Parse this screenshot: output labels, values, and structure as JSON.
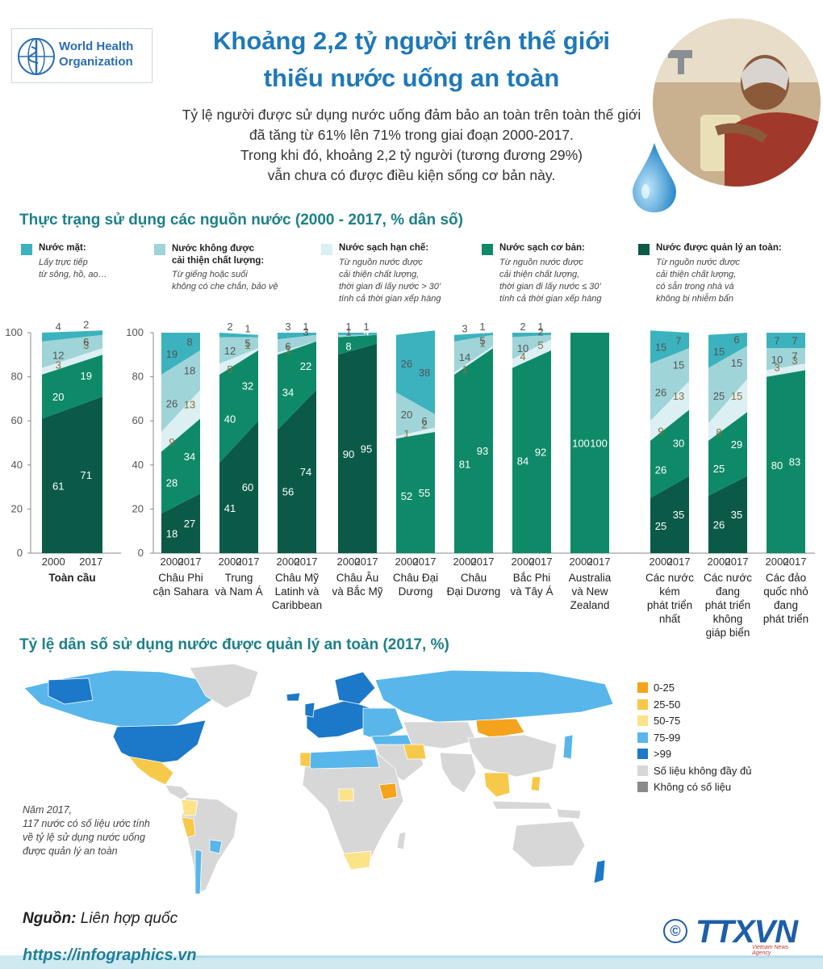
{
  "header": {
    "logo_text_1": "World Health",
    "logo_text_2": "Organization",
    "title_line1": "Khoảng 2,2 tỷ người trên thế giới",
    "title_line2": "thiếu nước uống an toàn",
    "subtitle_lines": [
      "Tỷ lệ người được sử dụng nước uống đảm bảo an toàn trên toàn thế giới",
      "đã tăng từ 61% lên 71% trong giai đoạn 2000-2017.",
      "Trong khi đó, khoảng 2,2 tỷ người (tương đương 29%)",
      "vẫn chưa có được điều kiện sống cơ bản này."
    ]
  },
  "section1": {
    "title": "Thực trạng sử dụng các nguồn nước (2000 - 2017, % dân số)"
  },
  "legend": [
    {
      "name": "Nước mặt:",
      "name2": "",
      "desc": [
        "Lấy trực tiếp",
        "từ sông, hồ, ao…"
      ],
      "color": "#3bb2bd"
    },
    {
      "name": "Nước không được",
      "name2": "cải thiện chất lượng:",
      "desc": [
        "Từ giếng hoặc suối",
        "không có che chắn, bảo vệ"
      ],
      "color": "#9fd4d8"
    },
    {
      "name": "Nước sạch hạn chế:",
      "name2": "",
      "desc": [
        "Từ nguồn nước được",
        "cải thiện chất lượng,",
        "thời gian đi lấy nước > 30’",
        "tính cả thời gian xếp hàng"
      ],
      "color": "#dceff2"
    },
    {
      "name": "Nước sạch cơ bản:",
      "name2": "",
      "desc": [
        "Từ nguồn nước được",
        "cải thiện chất lượng,",
        "thời gian đi lấy nước ≤ 30’",
        "tính cả thời gian xếp hàng"
      ],
      "color": "#0f8a68"
    },
    {
      "name": "Nước được quản lý an toàn:",
      "name2": "",
      "desc": [
        "Từ nguồn nước được",
        "cải thiện chất lượng,",
        "có sẵn trong nhà và",
        "không bị nhiễm bẩn"
      ],
      "color": "#0b5a48"
    }
  ],
  "chart_data": {
    "type": "bar",
    "stacked": true,
    "ylim": [
      0,
      100
    ],
    "yticks": [
      "0",
      "20",
      "40",
      "60",
      "80",
      "100"
    ],
    "series_order": [
      "Nước được quản lý an toàn",
      "Nước sạch cơ bản",
      "Nước sạch hạn chế",
      "Nước không được cải thiện chất lượng",
      "Nước mặt"
    ],
    "colors": [
      "#0b5a48",
      "#0f8a68",
      "#dceff2",
      "#9fd4d8",
      "#3bb2bd"
    ],
    "groups": [
      {
        "label": [
          "Toàn cầu"
        ],
        "bold": true,
        "years": [
          "2000",
          "2017"
        ],
        "values": [
          [
            61,
            20,
            3,
            12,
            4
          ],
          [
            71,
            19,
            3,
            6,
            2
          ]
        ]
      },
      {
        "label": [
          "Châu Phi",
          "cận Sahara"
        ],
        "years": [
          "2000",
          "2017"
        ],
        "values": [
          [
            18,
            28,
            9,
            26,
            19
          ],
          [
            27,
            34,
            13,
            18,
            8
          ]
        ]
      },
      {
        "label": [
          "Trung",
          "và Nam Á"
        ],
        "years": [
          "2000",
          "2017"
        ],
        "values": [
          [
            41,
            40,
            5,
            12,
            2
          ],
          [
            60,
            32,
            1,
            5,
            1
          ]
        ]
      },
      {
        "label": [
          "Châu Mỹ",
          "Latinh và",
          "Caribbean"
        ],
        "years": [
          "2000",
          "2017"
        ],
        "values": [
          [
            56,
            34,
            1,
            6,
            3
          ],
          [
            74,
            22,
            0,
            3,
            1
          ]
        ]
      },
      {
        "label": [
          "Châu Âu",
          "và Bắc Mỹ"
        ],
        "years": [
          "2000",
          "2017"
        ],
        "values": [
          [
            90,
            8,
            0,
            1,
            1
          ],
          [
            95,
            4,
            0,
            0,
            1
          ]
        ]
      },
      {
        "label": [
          "Châu Đại",
          "Dương"
        ],
        "years": [
          "2000",
          "2017"
        ],
        "values": [
          [
            0,
            52,
            1,
            20,
            26
          ],
          [
            0,
            55,
            2,
            6,
            38
          ]
        ]
      },
      {
        "label": [
          "Châu",
          "Đại Dương"
        ],
        "years": [
          "2000",
          "2017"
        ],
        "values": [
          [
            0,
            81,
            1,
            14,
            3
          ],
          [
            0,
            93,
            1,
            5,
            1
          ]
        ]
      },
      {
        "label": [
          "Bắc Phi",
          "và Tây Á"
        ],
        "years": [
          "2000",
          "2017"
        ],
        "values": [
          [
            0,
            84,
            4,
            10,
            2
          ],
          [
            0,
            92,
            5,
            2,
            1
          ]
        ]
      },
      {
        "label": [
          "Australia",
          "và New",
          "Zealand"
        ],
        "years": [
          "2000",
          "2017"
        ],
        "values": [
          [
            0,
            100,
            0,
            0,
            0
          ],
          [
            0,
            100,
            0,
            0,
            0
          ]
        ]
      },
      {
        "label": [
          "Các nước",
          "kém",
          "phát triển",
          "nhất"
        ],
        "years": [
          "2000",
          "2017"
        ],
        "values": [
          [
            25,
            26,
            9,
            26,
            15
          ],
          [
            35,
            30,
            13,
            15,
            7
          ]
        ]
      },
      {
        "label": [
          "Các nước",
          "đang",
          "phát triển",
          "không",
          "giáp biển"
        ],
        "years": [
          "2000",
          "2017"
        ],
        "values": [
          [
            26,
            25,
            8,
            25,
            15
          ],
          [
            35,
            29,
            15,
            15,
            6
          ]
        ]
      },
      {
        "label": [
          "Các đảo",
          "quốc nhỏ",
          "đang",
          "phát triển"
        ],
        "years": [
          "2000",
          "2017"
        ],
        "values": [
          [
            0,
            80,
            3,
            10,
            7
          ],
          [
            0,
            83,
            3,
            7,
            7
          ]
        ]
      }
    ]
  },
  "section2": {
    "title": "Tỷ lệ dân số sử dụng nước được quản lý an toàn (2017, %)",
    "legend": [
      {
        "label": "0-25",
        "color": "#f4a31c"
      },
      {
        "label": "25-50",
        "color": "#f7c94a"
      },
      {
        "label": "50-75",
        "color": "#fbe38a"
      },
      {
        "label": "75-99",
        "color": "#58b6ea"
      },
      {
        "label": ">99",
        "color": "#1c78c9"
      },
      {
        "label": "Số liệu không đầy đủ",
        "color": "#d7d7d7"
      },
      {
        "label": "Không có số liệu",
        "color": "#8a8a8a"
      }
    ],
    "note_lines": [
      "Năm 2017,",
      "117 nước có số liệu ước tính",
      "về tỷ lệ sử dụng nước uống",
      "được quản lý an toàn"
    ]
  },
  "footer": {
    "source_label": "Nguồn:",
    "source_value": "Liên hợp quốc",
    "url": "https://infographics.vn",
    "agency_logo": "TTXVN",
    "agency_sub": "Vietnam News Agency",
    "copyright": "©"
  }
}
